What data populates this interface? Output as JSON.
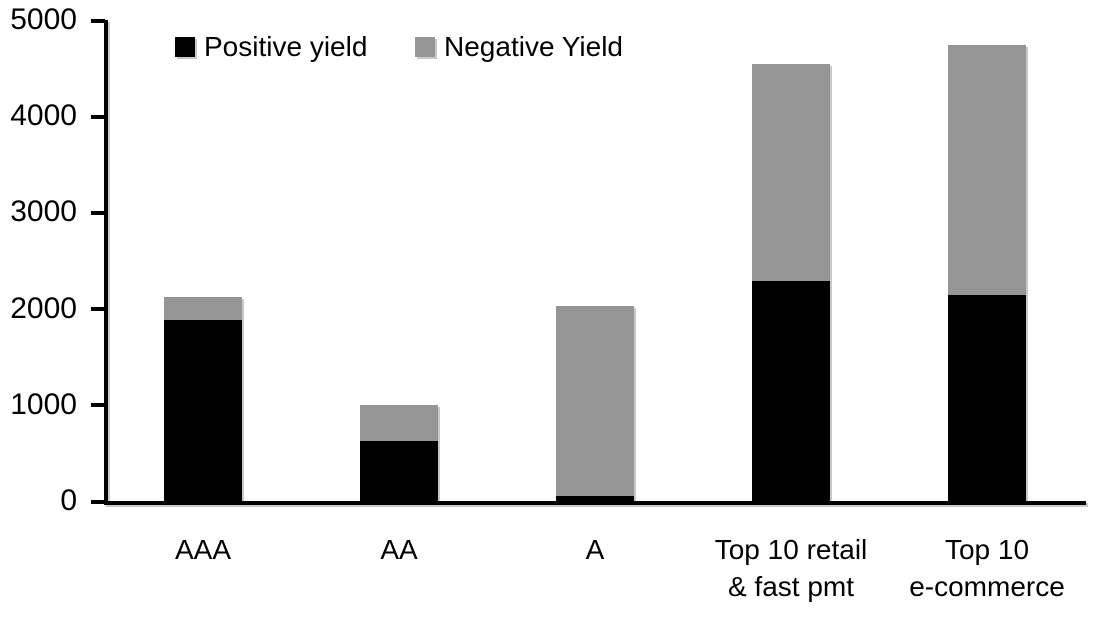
{
  "chart_data": {
    "type": "bar",
    "stacked": true,
    "title": "",
    "xlabel": "",
    "ylabel": "",
    "categories": [
      "AAA",
      "AA",
      "A",
      "Top 10 retail\n& fast pmt",
      "Top 10\ne-commerce"
    ],
    "series": [
      {
        "name": "Positive yield",
        "color": "#000000",
        "values": [
          1880,
          620,
          50,
          2290,
          2140
        ]
      },
      {
        "name": "Negative Yield",
        "color": "#969696",
        "values": [
          240,
          380,
          1980,
          2250,
          2600
        ]
      }
    ],
    "ylim": [
      0,
      5000
    ],
    "yticks": [
      0,
      1000,
      2000,
      3000,
      4000,
      5000
    ],
    "grid": false,
    "legend_position": "top-left",
    "axis_color": "#000000",
    "background_color": "#ffffff"
  }
}
